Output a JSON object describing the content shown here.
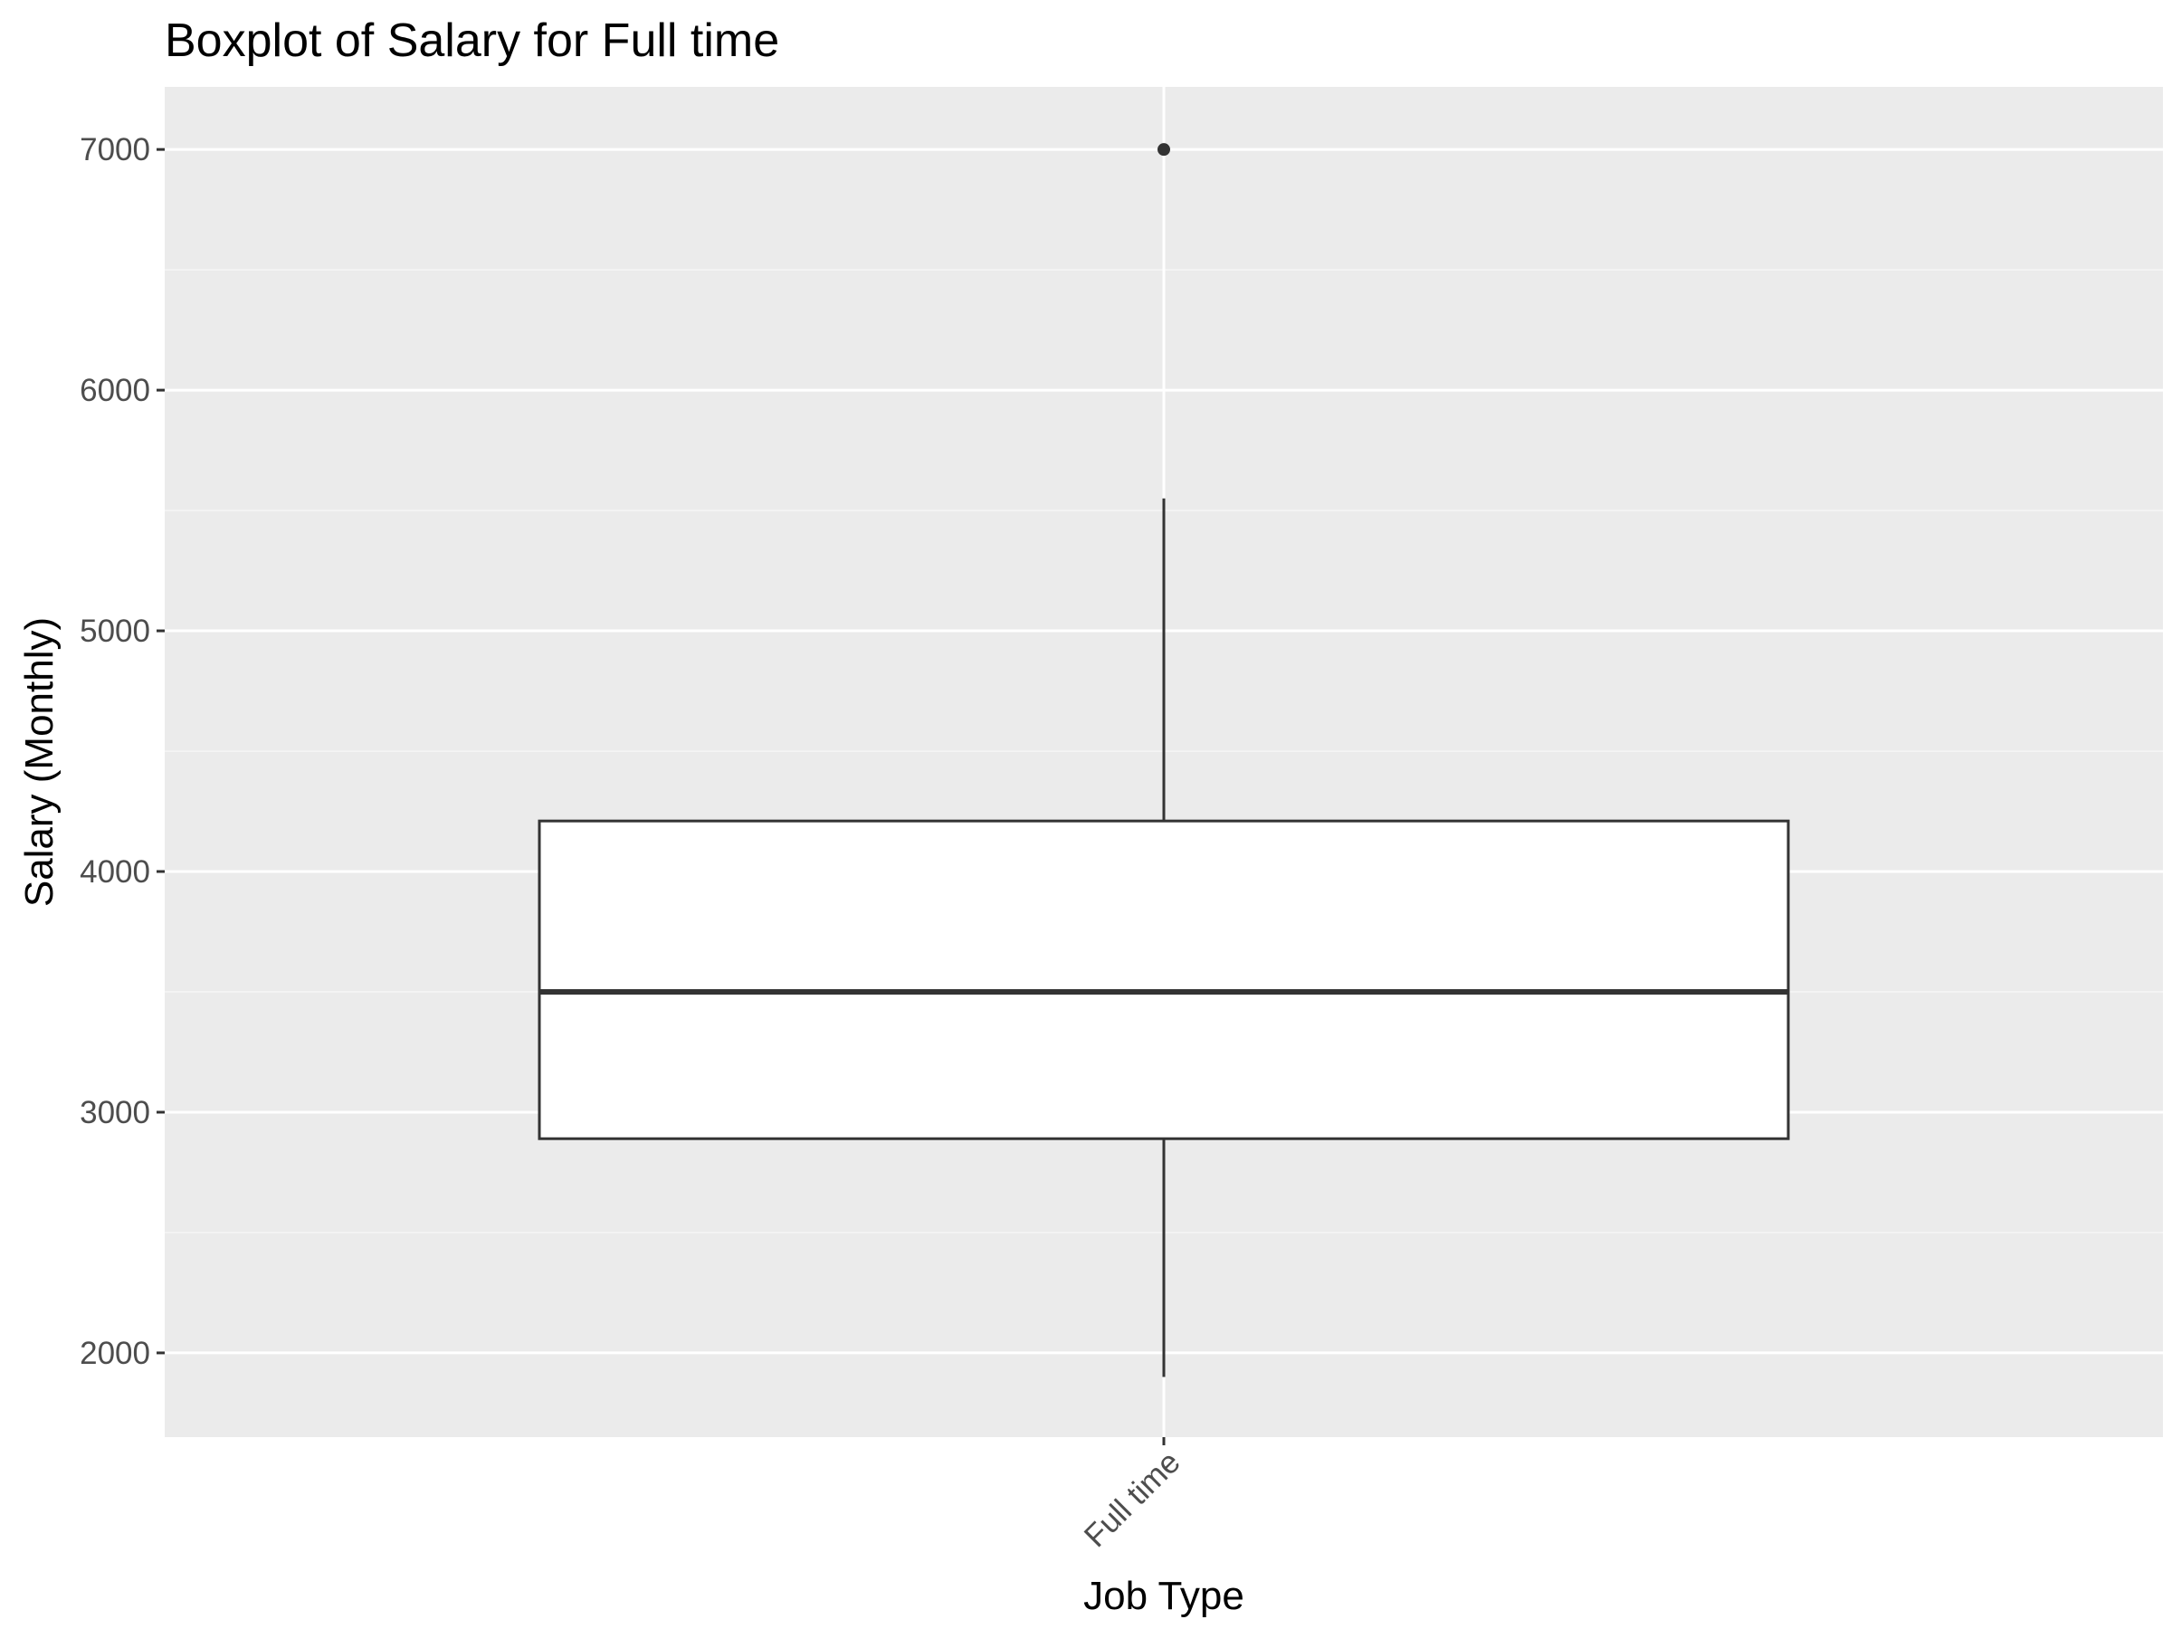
{
  "chart_data": {
    "type": "boxplot",
    "title": "Boxplot of Salary for Full time",
    "xlabel": "Job Type",
    "ylabel": "Salary (Monthly)",
    "categories": [
      "Full time"
    ],
    "boxes": [
      {
        "category": "Full time",
        "whisker_low": 1900,
        "q1": 2890,
        "median": 3500,
        "q3": 4210,
        "whisker_high": 5550,
        "outliers": [
          7000
        ]
      }
    ],
    "yticks": [
      2000,
      3000,
      4000,
      5000,
      6000,
      7000
    ],
    "ytick_labels": [
      "2000",
      "3000",
      "4000",
      "5000",
      "6000",
      "7000"
    ],
    "ylim": [
      1650,
      7260
    ],
    "grid": true,
    "colors": {
      "panel_background": "#ebebeb",
      "grid_major": "#ffffff",
      "grid_minor": "#f5f5f5",
      "box_fill": "#ffffff",
      "box_line": "#333333",
      "outlier": "#333333",
      "tick_text": "#4d4d4d",
      "tick_mark": "#333333"
    }
  }
}
